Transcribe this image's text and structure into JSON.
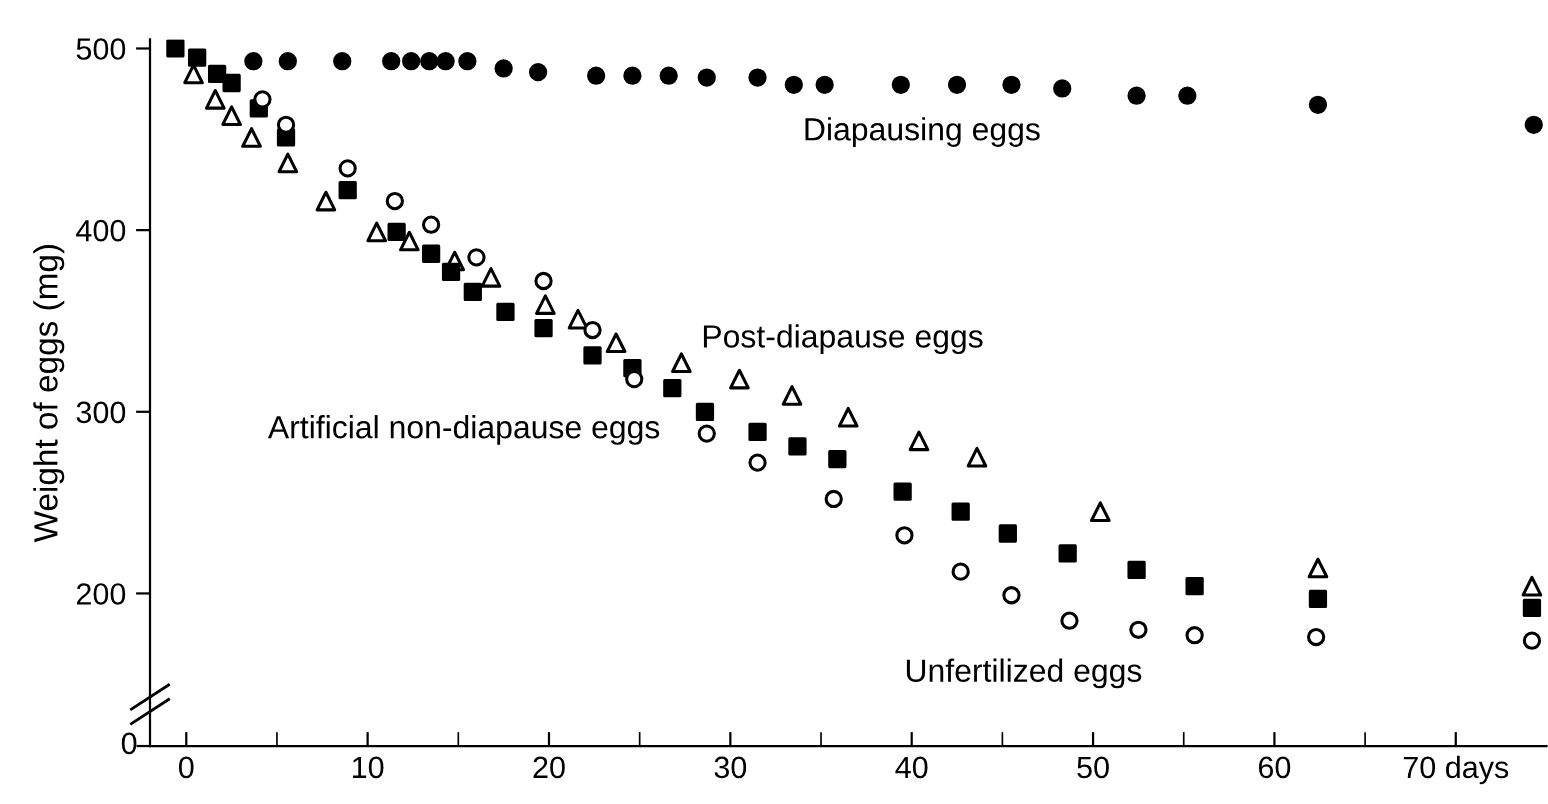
{
  "chart_data": {
    "type": "scatter",
    "ylabel": "Weight of eggs (mg)",
    "xlim": [
      -2,
      75
    ],
    "ylim": [
      116,
      505
    ],
    "yticks": [
      200,
      300,
      400,
      500
    ],
    "xticks": [
      0,
      {
        "value": 5,
        "label": null
      },
      10,
      {
        "value": 15,
        "label": null
      },
      20,
      {
        "value": 25,
        "label": null
      },
      30,
      {
        "value": 35,
        "label": null
      },
      40,
      {
        "value": 45,
        "label": null
      },
      50,
      {
        "value": 55,
        "label": null
      },
      60,
      {
        "value": 65,
        "label": null
      },
      {
        "value": 70,
        "label": "70 days"
      }
    ],
    "annotations": [
      "0"
    ],
    "grid": false,
    "series": [
      {
        "name": "Diapausing eggs",
        "color": "#000000",
        "marker": "circle",
        "x": [
          3.7,
          5.6,
          8.6,
          11.3,
          12.4,
          13.4,
          14.3,
          15.5,
          17.5,
          19.4,
          22.6,
          24.6,
          26.6,
          28.7,
          31.5,
          33.5,
          35.2,
          39.4,
          42.5,
          45.5,
          48.3,
          52.4,
          55.2,
          62.4,
          74.3
        ],
        "values": [
          493,
          493,
          493,
          493,
          493,
          493,
          493,
          493,
          489,
          487,
          485,
          485,
          485,
          484,
          484,
          480,
          480,
          480,
          480,
          480,
          478,
          474,
          474,
          469,
          458
        ]
      },
      {
        "name": "Post-diapause eggs",
        "color": "#000000",
        "marker": "triangle",
        "x": [
          0.4,
          1.6,
          2.5,
          3.6,
          5.6,
          7.7,
          10.5,
          12.3,
          14.8,
          16.8,
          19.8,
          21.6,
          23.7,
          27.3,
          30.5,
          33.4,
          36.5,
          40.4,
          43.6,
          50.4,
          62.4,
          74.2
        ],
        "values": [
          486,
          472,
          463,
          451,
          437,
          416,
          399,
          394,
          383,
          374,
          359,
          351,
          338,
          327,
          318,
          309,
          297,
          284,
          275,
          245,
          214,
          204
        ]
      },
      {
        "name": "Artificial non-diapause eggs",
        "color": "#000000",
        "marker": "square",
        "x": [
          -0.6,
          0.6,
          1.7,
          2.5,
          4.0,
          5.5,
          8.9,
          11.6,
          13.5,
          14.6,
          15.8,
          17.6,
          19.7,
          22.4,
          24.6,
          26.8,
          28.6,
          31.5,
          33.7,
          35.9,
          39.5,
          42.7,
          45.3,
          48.6,
          52.4,
          55.6,
          62.4,
          74.2
        ],
        "values": [
          500,
          495,
          486,
          481,
          467,
          451,
          422,
          399,
          387,
          377,
          366,
          355,
          346,
          331,
          324,
          313,
          300,
          289,
          281,
          274,
          256,
          245,
          233,
          222,
          213,
          204,
          197,
          192
        ]
      },
      {
        "name": "Unfertilized eggs",
        "color": "#000000",
        "marker": "circle",
        "x": [
          4.2,
          5.5,
          8.9,
          11.5,
          13.5,
          16.0,
          19.7,
          22.4,
          24.7,
          28.7,
          31.5,
          35.7,
          39.6,
          42.7,
          45.5,
          48.7,
          52.5,
          55.6,
          62.3,
          74.2
        ],
        "values": [
          472,
          458,
          434,
          416,
          403,
          385,
          372,
          345,
          318,
          288,
          272,
          252,
          232,
          212,
          199,
          185,
          180,
          177,
          176,
          174
        ]
      }
    ]
  }
}
